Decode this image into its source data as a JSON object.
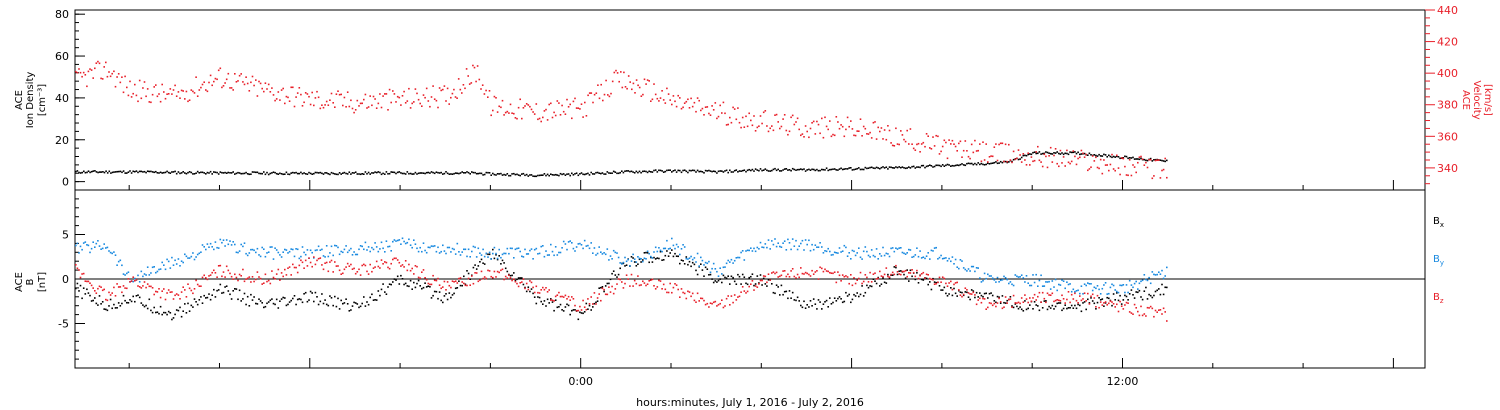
{
  "colors": {
    "black": "#000000",
    "red": "#e8202a",
    "blue": "#1a8ae0"
  },
  "xaxis": {
    "label": "hours:minutes, July  1, 2016 - July  2, 2016",
    "tick_labels": [
      {
        "hour": 24,
        "text": "0:00"
      },
      {
        "hour": 36,
        "text": "12:00"
      }
    ],
    "range_hours": [
      12.8,
      42.7
    ]
  },
  "chart_data": [
    {
      "type": "scatter",
      "panel": "top",
      "left_axis": {
        "label_lines": [
          "ACE",
          "Ion Density",
          "[cm⁻³]"
        ],
        "ylim": [
          -4,
          82
        ],
        "ticks": [
          0,
          20,
          40,
          60,
          80
        ]
      },
      "right_axis": {
        "label_lines": [
          "ACE",
          "Velocity",
          "[km/s]"
        ],
        "ylim": [
          326,
          440
        ],
        "ticks": [
          340,
          360,
          380,
          400,
          420,
          440
        ],
        "color": "#e8202a"
      },
      "series": [
        {
          "axis": "left",
          "color": "#000000",
          "points": [
            [
              12.8,
              5
            ],
            [
              14,
              5
            ],
            [
              16,
              4.5
            ],
            [
              18,
              4.3
            ],
            [
              20,
              4.5
            ],
            [
              21.5,
              4.5
            ],
            [
              22,
              4
            ],
            [
              23,
              3.5
            ],
            [
              24,
              4
            ],
            [
              25,
              5
            ],
            [
              26,
              5.5
            ],
            [
              27,
              5
            ],
            [
              28,
              6
            ],
            [
              29,
              6
            ],
            [
              30,
              6.5
            ],
            [
              31,
              7
            ],
            [
              32,
              8
            ],
            [
              33,
              9
            ],
            [
              33.5,
              10
            ],
            [
              34,
              14
            ],
            [
              35,
              14
            ],
            [
              36,
              12
            ],
            [
              37,
              10
            ]
          ]
        },
        {
          "axis": "right",
          "color": "#e8202a",
          "points": [
            [
              12.8,
              396
            ],
            [
              13.5,
              403
            ],
            [
              14,
              390
            ],
            [
              15,
              386
            ],
            [
              16,
              398
            ],
            [
              17,
              390
            ],
            [
              18,
              384
            ],
            [
              19,
              382
            ],
            [
              20,
              384
            ],
            [
              21,
              386
            ],
            [
              21.7,
              402
            ],
            [
              22,
              380
            ],
            [
              23,
              376
            ],
            [
              24,
              378
            ],
            [
              24.8,
              396
            ],
            [
              25.5,
              390
            ],
            [
              26,
              383
            ],
            [
              27,
              376
            ],
            [
              28,
              370
            ],
            [
              29,
              366
            ],
            [
              30,
              366
            ],
            [
              31,
              360
            ],
            [
              32,
              354
            ],
            [
              33,
              350
            ],
            [
              34,
              348
            ],
            [
              35,
              346
            ],
            [
              36,
              342
            ],
            [
              37,
              340
            ]
          ]
        }
      ]
    },
    {
      "type": "scatter",
      "panel": "bottom",
      "left_axis": {
        "label_lines": [
          "ACE",
          "B",
          "[nT]"
        ],
        "ylim": [
          -10,
          10
        ],
        "ticks": [
          -5,
          0,
          5
        ]
      },
      "legend_placement": "right",
      "series": [
        {
          "name": "Bx",
          "color": "#000000",
          "points": [
            [
              12.8,
              -1
            ],
            [
              13.5,
              -3
            ],
            [
              14,
              -2
            ],
            [
              15,
              -4
            ],
            [
              16,
              -1
            ],
            [
              17,
              -3
            ],
            [
              18,
              -2
            ],
            [
              19,
              -3
            ],
            [
              20,
              0
            ],
            [
              21,
              -2
            ],
            [
              22,
              3
            ],
            [
              23,
              -2
            ],
            [
              24,
              -4
            ],
            [
              25,
              2
            ],
            [
              26,
              3
            ],
            [
              27,
              0
            ],
            [
              28,
              0
            ],
            [
              29,
              -3
            ],
            [
              30,
              -2
            ],
            [
              31,
              1
            ],
            [
              32,
              -1
            ],
            [
              33,
              -2
            ],
            [
              34,
              -3
            ],
            [
              35,
              -3
            ],
            [
              36,
              -2
            ],
            [
              37,
              -1
            ]
          ]
        },
        {
          "name": "By",
          "color": "#1a8ae0",
          "points": [
            [
              12.8,
              3.5
            ],
            [
              13.5,
              4
            ],
            [
              14,
              0
            ],
            [
              15,
              2
            ],
            [
              16,
              4
            ],
            [
              17,
              3
            ],
            [
              18,
              3
            ],
            [
              19,
              3.5
            ],
            [
              20,
              4
            ],
            [
              21,
              3.5
            ],
            [
              22,
              3
            ],
            [
              23,
              3
            ],
            [
              24,
              4
            ],
            [
              25,
              2
            ],
            [
              26,
              4
            ],
            [
              27,
              1
            ],
            [
              28,
              4
            ],
            [
              29,
              4
            ],
            [
              30,
              3
            ],
            [
              31,
              3
            ],
            [
              32,
              3
            ],
            [
              33,
              0
            ],
            [
              34,
              0
            ],
            [
              35,
              -1
            ],
            [
              36,
              -1
            ],
            [
              37,
              1
            ]
          ]
        },
        {
          "name": "Bz",
          "color": "#e8202a",
          "points": [
            [
              12.8,
              1
            ],
            [
              13.5,
              -2
            ],
            [
              14,
              0
            ],
            [
              15,
              -2
            ],
            [
              16,
              1
            ],
            [
              17,
              0
            ],
            [
              18,
              2
            ],
            [
              19,
              1
            ],
            [
              20,
              2
            ],
            [
              21,
              -1
            ],
            [
              22,
              1
            ],
            [
              23,
              -1
            ],
            [
              24,
              -3
            ],
            [
              25,
              0
            ],
            [
              26,
              -1
            ],
            [
              27,
              -3
            ],
            [
              28,
              0
            ],
            [
              29,
              1
            ],
            [
              30,
              0
            ],
            [
              31,
              1
            ],
            [
              32,
              0
            ],
            [
              33,
              -3
            ],
            [
              34,
              -2
            ],
            [
              35,
              -2
            ],
            [
              36,
              -3
            ],
            [
              37,
              -4
            ]
          ]
        }
      ]
    }
  ]
}
